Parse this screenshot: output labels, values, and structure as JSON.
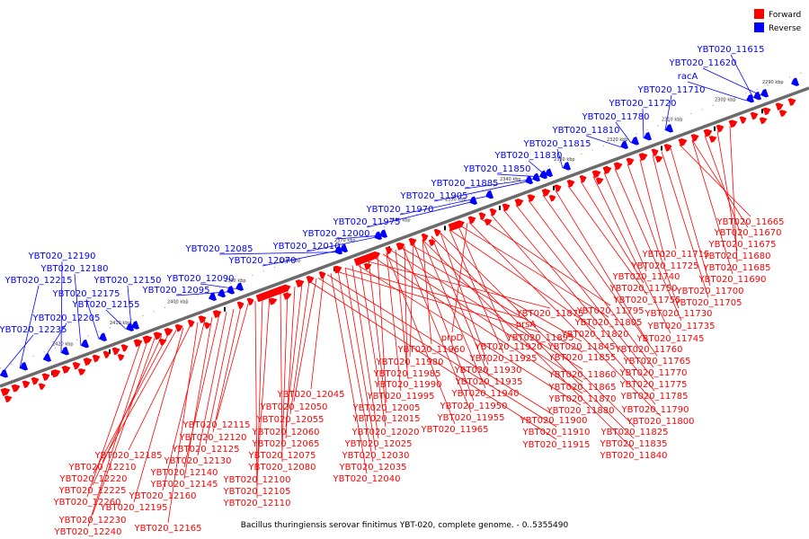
{
  "legend": {
    "forward_label": "Forward",
    "reverse_label": "Reverse"
  },
  "colors": {
    "forward": "#ff0000",
    "reverse": "#0000ff",
    "axis": "#6b6b6b",
    "ticks": "#000000"
  },
  "caption": "Bacillus thuringiensis serovar finitimus YBT-020, complete genome. - 0..5355490",
  "scale_ticks": [
    "2290 kbp",
    "2300 kbp",
    "2310 kbp",
    "2320 kbp",
    "2330 kbp",
    "2340 kbp",
    "2350 kbp",
    "2360 kbp",
    "2370 kbp",
    "2380 kbp",
    "2390 kbp",
    "2400 kbp",
    "2410 kbp",
    "2420 kbp"
  ],
  "reverse_genes": [
    "YBT020_11615",
    "YBT020_11620",
    "racA",
    "YBT020_11710",
    "YBT020_11720",
    "YBT020_11780",
    "YBT020_11810",
    "YBT020_11815",
    "YBT020_11830",
    "YBT020_11850",
    "YBT020_11885",
    "YBT020_11905",
    "YBT020_11970",
    "YBT020_11975",
    "YBT020_12000",
    "YBT020_12010",
    "YBT020_12070",
    "YBT020_12085",
    "YBT020_12090",
    "YBT020_12095",
    "YBT020_12150",
    "YBT020_12155",
    "YBT020_12175",
    "YBT020_12180",
    "YBT020_12190",
    "YBT020_12205",
    "YBT020_12215",
    "YBT020_12235"
  ],
  "forward_genes": {
    "right_group": [
      "YBT020_11665",
      "YBT020_11670",
      "YBT020_11675",
      "YBT020_11680",
      "YBT020_11685",
      "YBT020_11690",
      "YBT020_11700",
      "YBT020_11705",
      "YBT020_11715",
      "YBT020_11725",
      "YBT020_11730",
      "YBT020_11735",
      "YBT020_11740",
      "YBT020_11745",
      "YBT020_11750",
      "YBT020_11755",
      "YBT020_11760",
      "YBT020_11765",
      "YBT020_11770",
      "YBT020_11775",
      "YBT020_11785",
      "YBT020_11790",
      "YBT020_11795",
      "YBT020_11800",
      "YBT020_11805",
      "YBT020_11820",
      "YBT020_11825",
      "YBT020_11835",
      "YBT020_11840",
      "YBT020_11845",
      "YBT020_11855",
      "YBT020_11860",
      "YBT020_11865",
      "YBT020_11870",
      "YBT020_11875",
      "YBT020_11880",
      "prsA",
      "YBT020_11895",
      "YBT020_11900",
      "YBT020_11910",
      "YBT020_11915"
    ],
    "middle_group": [
      "prpD",
      "YBT020_11920",
      "YBT020_11925",
      "YBT020_11930",
      "YBT020_11935",
      "YBT020_11940",
      "YBT020_11950",
      "YBT020_11955",
      "YBT020_11960",
      "YBT020_11965",
      "YBT020_11980",
      "YBT020_11985",
      "YBT020_11990",
      "YBT020_11995",
      "YBT020_12005",
      "YBT020_12015",
      "YBT020_12020",
      "YBT020_12025",
      "YBT020_12030",
      "YBT020_12035",
      "YBT020_12040",
      "YBT020_12045",
      "YBT020_12050",
      "YBT020_12055",
      "YBT020_12060",
      "YBT020_12065",
      "YBT020_12075",
      "YBT020_12080"
    ],
    "left_group": [
      "YBT020_12100",
      "YBT020_12105",
      "YBT020_12110",
      "YBT020_12115",
      "YBT020_12120",
      "YBT020_12125",
      "YBT020_12130",
      "YBT020_12140",
      "YBT020_12145",
      "YBT020_12160",
      "YBT020_12165",
      "YBT020_12185",
      "YBT020_12195",
      "YBT020_12210",
      "YBT020_12220",
      "YBT020_12225",
      "YBT020_12230",
      "YBT020_12240",
      "YBT020_12260"
    ]
  }
}
